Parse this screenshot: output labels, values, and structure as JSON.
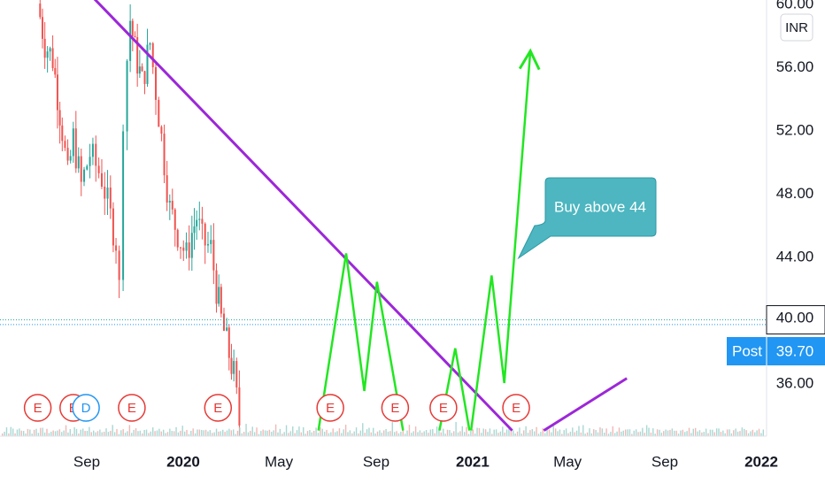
{
  "currency_badge": "INR",
  "price_scale": {
    "ticks": [
      "60.00",
      "56.00",
      "52.00",
      "48.00",
      "44.00",
      "40.00",
      "36.00"
    ],
    "current_price_label": "40.00",
    "post_label": "Post",
    "post_price_label": "39.70"
  },
  "time_axis": {
    "labels": [
      "Sep",
      "2020",
      "May",
      "Sep",
      "2021",
      "May",
      "Sep",
      "2022"
    ],
    "bold": [
      false,
      true,
      false,
      false,
      true,
      false,
      false,
      true
    ]
  },
  "annotation": {
    "text": "Buy above 44"
  },
  "event_markers": {
    "letters": [
      "E",
      "E",
      "D",
      "E",
      "E",
      "E",
      "E",
      "E",
      "E"
    ]
  },
  "colors": {
    "candle_up": "#26a69a",
    "candle_down": "#ef5350",
    "trendline": "#9c27d8",
    "pattern": "#22e622",
    "callout": "#4db6c0",
    "post_badge": "#2196f3",
    "price_badge": "#ffffff",
    "earnings_marker": "#e53935",
    "dividend_marker": "#2196f3"
  },
  "chart_data": {
    "type": "candlestick",
    "currency": "INR",
    "ylim": [
      33.0,
      60.0
    ],
    "y_ticks": [
      36,
      40,
      44,
      48,
      52,
      56,
      60
    ],
    "x_range": [
      "2019-07-01",
      "2022-01-15"
    ],
    "x_ticks": [
      "2019-09-01",
      "2020-01-01",
      "2020-05-01",
      "2020-09-01",
      "2021-01-01",
      "2021-05-01",
      "2021-09-01",
      "2022-01-01"
    ],
    "current_price": 40.0,
    "post_market_price": 39.7,
    "price_path": [
      [
        "2019-07-01",
        60.0
      ],
      [
        "2019-07-10",
        57.5
      ],
      [
        "2019-07-20",
        56.5
      ],
      [
        "2019-08-01",
        52.0
      ],
      [
        "2019-08-08",
        49.0
      ],
      [
        "2019-08-15",
        51.5
      ],
      [
        "2019-08-25",
        48.5
      ],
      [
        "2019-09-05",
        50.5
      ],
      [
        "2019-09-20",
        49.0
      ],
      [
        "2019-10-01",
        46.5
      ],
      [
        "2019-10-08",
        45.0
      ],
      [
        "2019-10-12",
        42.0
      ],
      [
        "2019-10-17",
        53.0
      ],
      [
        "2019-10-22",
        56.5
      ],
      [
        "2019-10-26",
        59.0
      ],
      [
        "2019-11-01",
        57.0
      ],
      [
        "2019-11-10",
        55.0
      ],
      [
        "2019-11-20",
        57.5
      ],
      [
        "2019-12-01",
        53.0
      ],
      [
        "2019-12-08",
        50.0
      ],
      [
        "2019-12-15",
        47.0
      ],
      [
        "2019-12-25",
        45.5
      ],
      [
        "2020-01-05",
        44.0
      ],
      [
        "2020-01-12",
        45.5
      ],
      [
        "2020-01-18",
        46.5
      ],
      [
        "2020-01-25",
        45.0
      ],
      [
        "2020-02-05",
        44.5
      ],
      [
        "2020-02-12",
        42.0
      ],
      [
        "2020-02-18",
        40.0
      ],
      [
        "2020-02-25",
        38.5
      ],
      [
        "2020-03-05",
        36.5
      ],
      [
        "2020-03-12",
        33.5
      ]
    ],
    "volume_scale": "relative",
    "volume": [
      0.35,
      0.3,
      0.4,
      0.28,
      0.55,
      0.32,
      0.25,
      0.36,
      0.3,
      0.42,
      0.26,
      0.34,
      0.48,
      0.3,
      0.27,
      0.38,
      0.31,
      0.29,
      0.45,
      0.33,
      0.28,
      0.36,
      0.4,
      0.3,
      0.26,
      0.52,
      0.34,
      0.29,
      0.37,
      0.31,
      0.43,
      0.28,
      0.35,
      0.3,
      0.6,
      0.33,
      0.27,
      0.39,
      0.32,
      0.46,
      0.29,
      0.36,
      0.31,
      0.28,
      0.5,
      0.34,
      0.3,
      0.41,
      0.27,
      0.33,
      0.38,
      0.29,
      0.44,
      0.31,
      0.35,
      0.28,
      0.4,
      0.32,
      0.36,
      0.3,
      0.47,
      0.29,
      0.34,
      0.31,
      0.39,
      0.27,
      0.35,
      0.42,
      0.3,
      0.33,
      0.28,
      0.37,
      0.45,
      0.31,
      0.29,
      0.36,
      0.32,
      0.4,
      0.28,
      0.34,
      0.55,
      0.3,
      0.38,
      0.33,
      0.29,
      0.41,
      0.35,
      0.31,
      0.27,
      0.36
    ],
    "trendlines": [
      {
        "from": [
          "2019-08-28",
          61.0
        ],
        "to": [
          "2021-02-20",
          33.0
        ]
      },
      {
        "from": [
          "2021-04-01",
          33.0
        ],
        "to": [
          "2021-07-15",
          36.3
        ]
      }
    ],
    "pattern_lines": [
      [
        [
          "2020-06-20",
          33.0
        ],
        [
          "2020-07-25",
          44.2
        ],
        [
          "2020-08-17",
          35.5
        ],
        [
          "2020-09-02",
          42.4
        ],
        [
          "2020-10-05",
          33.0
        ]
      ],
      [
        [
          "2020-11-20",
          33.0
        ],
        [
          "2020-12-10",
          38.2
        ],
        [
          "2020-12-28",
          33.0
        ]
      ],
      [
        [
          "2020-12-30",
          33.0
        ],
        [
          "2021-01-25",
          42.8
        ],
        [
          "2021-02-10",
          36.0
        ],
        [
          "2021-03-15",
          57.0
        ]
      ]
    ],
    "projection_arrow_tip": [
      "2021-03-15",
      57.0
    ],
    "event_dates": [
      "2019-07-01",
      "2019-08-15",
      "2019-08-31",
      "2019-10-28",
      "2020-02-14",
      "2020-07-05",
      "2020-09-25",
      "2020-11-25",
      "2021-02-25"
    ],
    "annotations": [
      {
        "text": "Buy above 44",
        "anchor": [
          "2021-02-28",
          43.9
        ]
      }
    ]
  }
}
